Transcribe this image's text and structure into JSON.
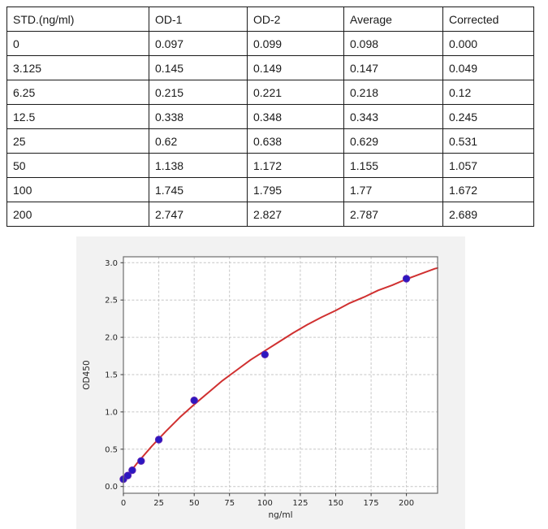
{
  "table": {
    "headers": [
      "STD.(ng/ml)",
      "OD-1",
      "OD-2",
      "Average",
      "Corrected"
    ],
    "rows": [
      [
        "0",
        "0.097",
        "0.099",
        "0.098",
        "0.000"
      ],
      [
        "3.125",
        "0.145",
        "0.149",
        "0.147",
        "0.049"
      ],
      [
        "6.25",
        "0.215",
        "0.221",
        "0.218",
        "0.12"
      ],
      [
        "12.5",
        "0.338",
        "0.348",
        "0.343",
        "0.245"
      ],
      [
        "25",
        "0.62",
        "0.638",
        "0.629",
        "0.531"
      ],
      [
        "50",
        "1.138",
        "1.172",
        "1.155",
        "1.057"
      ],
      [
        "100",
        "1.745",
        "1.795",
        "1.77",
        "1.672"
      ],
      [
        "200",
        "2.747",
        "2.827",
        "2.787",
        "2.689"
      ]
    ]
  },
  "chart_data": {
    "type": "scatter",
    "title": "",
    "xlabel": "ng/ml",
    "ylabel": "OD450",
    "xlim": [
      0,
      222
    ],
    "ylim": [
      -0.09,
      3.08
    ],
    "grid": true,
    "legend": "none",
    "x_ticks": [
      0,
      25,
      50,
      75,
      100,
      125,
      150,
      175,
      200
    ],
    "x_tick_labels": [
      "0",
      "25",
      "50",
      "75",
      "100",
      "125",
      "150",
      "175",
      "200"
    ],
    "y_ticks": [
      0.0,
      0.5,
      1.0,
      1.5,
      2.0,
      2.5,
      3.0
    ],
    "y_tick_labels": [
      "0.0",
      "0.5",
      "1.0",
      "1.5",
      "2.0",
      "2.5",
      "3.0"
    ],
    "series": [
      {
        "name": "standards-average",
        "type": "scatter",
        "x": [
          0,
          3.125,
          6.25,
          12.5,
          25,
          50,
          100,
          200
        ],
        "y": [
          0.098,
          0.147,
          0.218,
          0.343,
          0.629,
          1.155,
          1.77,
          2.787
        ]
      },
      {
        "name": "fit-curve",
        "type": "line",
        "x": [
          0,
          10,
          20,
          30,
          40,
          50,
          60,
          70,
          80,
          90,
          100,
          110,
          120,
          130,
          140,
          150,
          160,
          170,
          180,
          190,
          200,
          210,
          220,
          222
        ],
        "y": [
          0.08,
          0.32,
          0.54,
          0.74,
          0.93,
          1.1,
          1.26,
          1.42,
          1.56,
          1.7,
          1.82,
          1.94,
          2.06,
          2.17,
          2.27,
          2.36,
          2.46,
          2.54,
          2.63,
          2.7,
          2.78,
          2.85,
          2.92,
          2.93
        ]
      }
    ],
    "colors": {
      "figure_bg": "#f2f2f2",
      "plot_bg": "#ffffff",
      "grid": "#c6c6c6",
      "spine": "#6e6e6e",
      "tick_text": "#262626",
      "curve": "#d03030",
      "point_fill": "#2b18c0",
      "point_stroke": "#5b21b6"
    }
  }
}
